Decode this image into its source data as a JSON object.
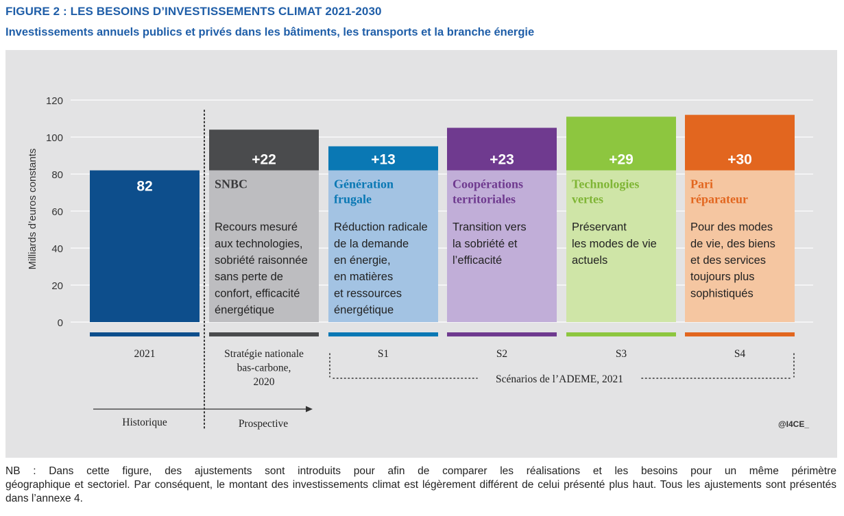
{
  "header": {
    "title": "FIGURE 2 : LES BESOINS D’INVESTISSEMENTS CLIMAT 2021-2030",
    "subtitle": "Investissements annuels publics et privés dans les bâtiments, les transports et la branche énergie"
  },
  "chart_data": {
    "type": "bar",
    "stacked": true,
    "ylabel": "Milliards d’euros constants",
    "ylim": [
      0,
      120
    ],
    "yticks": [
      0,
      20,
      40,
      60,
      80,
      100,
      120
    ],
    "grid": true,
    "categories": [
      "2021",
      "Stratégie nationale bas-carbone, 2020",
      "S1",
      "S2",
      "S3",
      "S4"
    ],
    "base_value": 82,
    "base_label": "82",
    "bars": [
      {
        "category": "2021",
        "base": 82,
        "increment": null,
        "increment_label": "",
        "scenario_title": "",
        "description": "",
        "color": "#0d4e8c",
        "light_color": "#0d4e8c"
      },
      {
        "category": "Stratégie nationale bas-carbone, 2020",
        "base": 82,
        "increment": 22,
        "increment_label": "+22",
        "scenario_title": "SNBC",
        "description": "Recours mesuré\naux technologies,\nsobriété raisonnée\nsans perte de\nconfort, efficacité\nénergétique",
        "color": "#4a4b4d",
        "light_color": "#bdbdc0",
        "title_color": "#3a3a3c"
      },
      {
        "category": "S1",
        "base": 82,
        "increment": 13,
        "increment_label": "+13",
        "scenario_title": "Génération\nfrugale",
        "description": "Réduction radicale\nde la demande\nen énergie,\nen matières\net ressources\nénergétique",
        "color": "#0a78b4",
        "light_color": "#a3c3e3",
        "title_color": "#0a78b4"
      },
      {
        "category": "S2",
        "base": 82,
        "increment": 23,
        "increment_label": "+23",
        "scenario_title": "Coopérations\nterritoriales",
        "description": "Transition vers\nla sobriété et\nl’efficacité",
        "color": "#6f3a8f",
        "light_color": "#c1aed8",
        "title_color": "#6f3a8f"
      },
      {
        "category": "S3",
        "base": 82,
        "increment": 29,
        "increment_label": "+29",
        "scenario_title": "Technologies\nvertes",
        "description": "Préservant\nles modes de vie\nactuels",
        "color": "#8dc63f",
        "light_color": "#cfe5a7",
        "title_color": "#7fb535"
      },
      {
        "category": "S4",
        "base": 82,
        "increment": 30,
        "increment_label": "+30",
        "scenario_title": "Pari\nréparateur",
        "description": "Pour des modes\nde vie, des biens\net des services\ntoujours plus\nsophistiqués",
        "color": "#e2661f",
        "light_color": "#f5c6a1",
        "title_color": "#e2661f"
      }
    ],
    "x_tick_labels": [
      "2021",
      "Stratégie nationale\nbas-carbone,\n2020",
      "S1",
      "S2",
      "S3",
      "S4"
    ],
    "bracket_label": "Scénarios de l’ADEME, 2021",
    "timeline": {
      "historique": "Historique",
      "prospective": "Prospective"
    },
    "credit": "@I4CE_"
  },
  "footnote": {
    "line1": "NB : Dans cette figure, des ajustements sont introduits pour afin de comparer les réalisations et les besoins pour un même périmètre",
    "rest": "géographique et sectoriel. Par conséquent, le montant des investissements climat est légèrement différent de celui présenté plus haut. Tous les ajustements sont présentés dans l’annexe 4."
  }
}
